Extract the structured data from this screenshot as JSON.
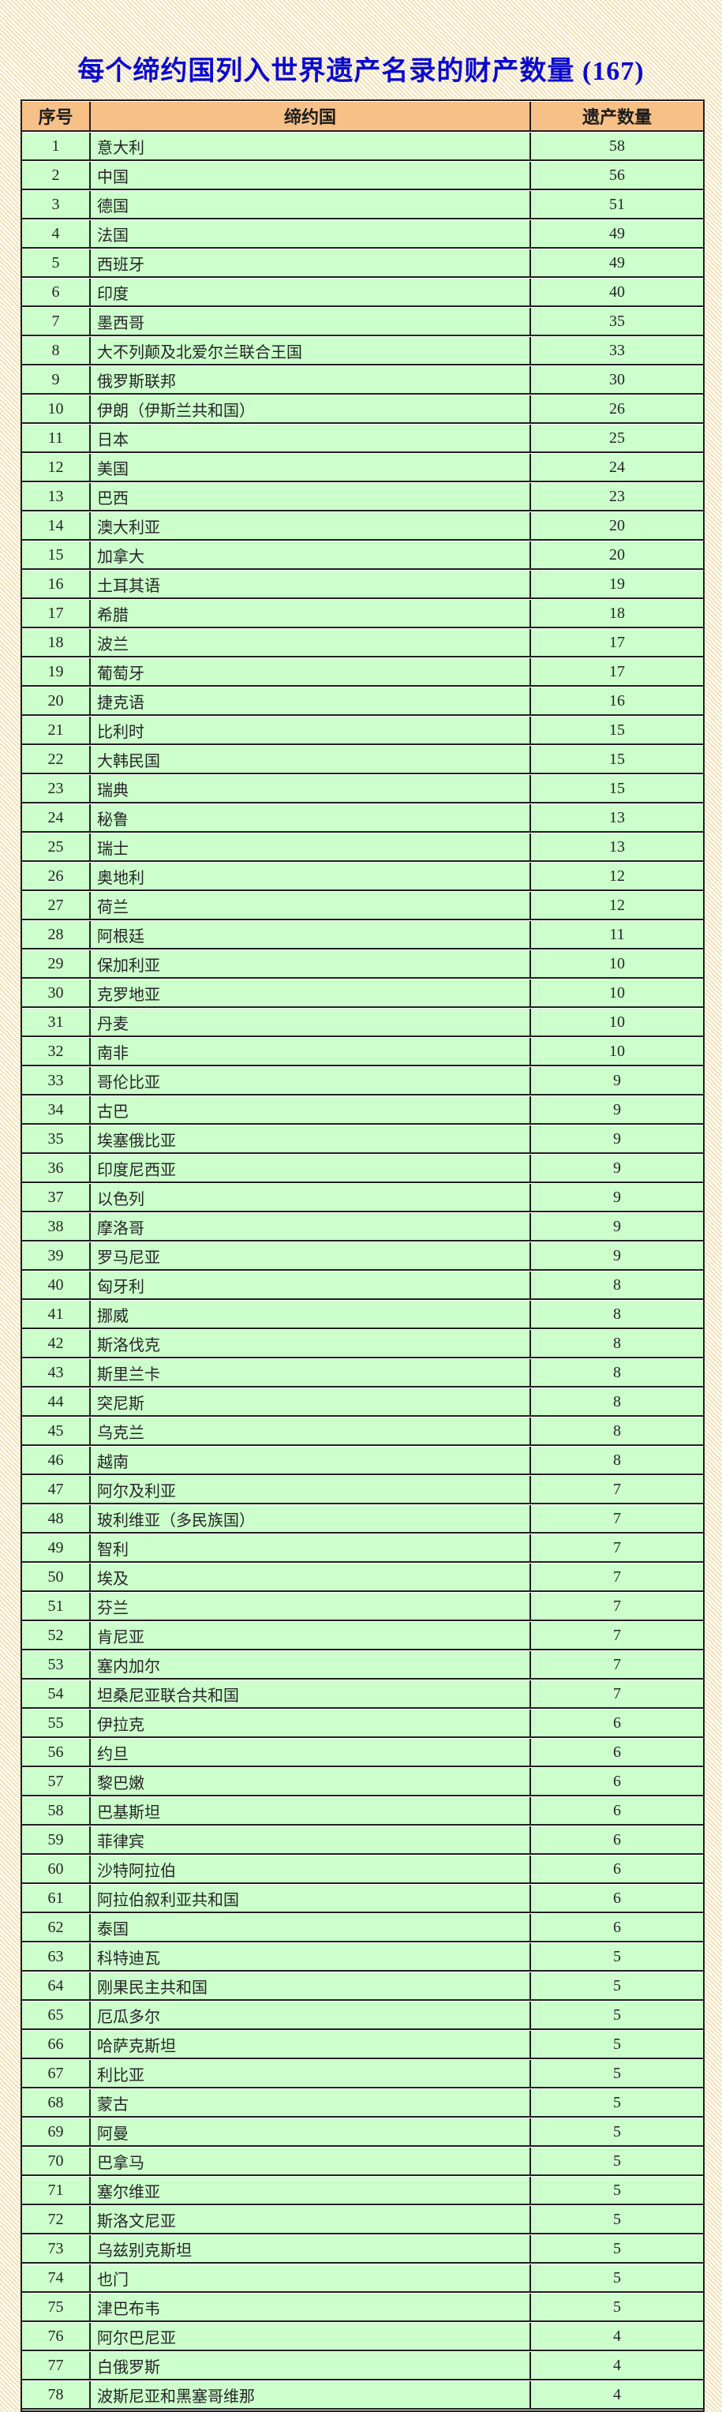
{
  "title": "每个缔约国列入世界遗产名录的财产数量 (167)",
  "table": {
    "headers": [
      "序号",
      "缔约国",
      "遗产数量"
    ],
    "rows": [
      [
        "1",
        "意大利",
        "58"
      ],
      [
        "2",
        "中国",
        "56"
      ],
      [
        "3",
        "德国",
        "51"
      ],
      [
        "4",
        "法国",
        "49"
      ],
      [
        "5",
        "西班牙",
        "49"
      ],
      [
        "6",
        "印度",
        "40"
      ],
      [
        "7",
        "墨西哥",
        "35"
      ],
      [
        "8",
        "大不列颠及北爱尔兰联合王国",
        "33"
      ],
      [
        "9",
        "俄罗斯联邦",
        "30"
      ],
      [
        "10",
        "伊朗（伊斯兰共和国）",
        "26"
      ],
      [
        "11",
        "日本",
        "25"
      ],
      [
        "12",
        "美国",
        "24"
      ],
      [
        "13",
        "巴西",
        "23"
      ],
      [
        "14",
        "澳大利亚",
        "20"
      ],
      [
        "15",
        "加拿大",
        "20"
      ],
      [
        "16",
        "土耳其语",
        "19"
      ],
      [
        "17",
        "希腊",
        "18"
      ],
      [
        "18",
        "波兰",
        "17"
      ],
      [
        "19",
        "葡萄牙",
        "17"
      ],
      [
        "20",
        "捷克语",
        "16"
      ],
      [
        "21",
        "比利时",
        "15"
      ],
      [
        "22",
        "大韩民国",
        "15"
      ],
      [
        "23",
        "瑞典",
        "15"
      ],
      [
        "24",
        "秘鲁",
        "13"
      ],
      [
        "25",
        "瑞士",
        "13"
      ],
      [
        "26",
        "奥地利",
        "12"
      ],
      [
        "27",
        "荷兰",
        "12"
      ],
      [
        "28",
        "阿根廷",
        "11"
      ],
      [
        "29",
        "保加利亚",
        "10"
      ],
      [
        "30",
        "克罗地亚",
        "10"
      ],
      [
        "31",
        "丹麦",
        "10"
      ],
      [
        "32",
        "南非",
        "10"
      ],
      [
        "33",
        "哥伦比亚",
        "9"
      ],
      [
        "34",
        "古巴",
        "9"
      ],
      [
        "35",
        "埃塞俄比亚",
        "9"
      ],
      [
        "36",
        "印度尼西亚",
        "9"
      ],
      [
        "37",
        "以色列",
        "9"
      ],
      [
        "38",
        "摩洛哥",
        "9"
      ],
      [
        "39",
        "罗马尼亚",
        "9"
      ],
      [
        "40",
        "匈牙利",
        "8"
      ],
      [
        "41",
        "挪威",
        "8"
      ],
      [
        "42",
        "斯洛伐克",
        "8"
      ],
      [
        "43",
        "斯里兰卡",
        "8"
      ],
      [
        "44",
        "突尼斯",
        "8"
      ],
      [
        "45",
        "乌克兰",
        "8"
      ],
      [
        "46",
        "越南",
        "8"
      ],
      [
        "47",
        "阿尔及利亚",
        "7"
      ],
      [
        "48",
        "玻利维亚（多民族国）",
        "7"
      ],
      [
        "49",
        "智利",
        "7"
      ],
      [
        "50",
        "埃及",
        "7"
      ],
      [
        "51",
        "芬兰",
        "7"
      ],
      [
        "52",
        "肯尼亚",
        "7"
      ],
      [
        "53",
        "塞内加尔",
        "7"
      ],
      [
        "54",
        "坦桑尼亚联合共和国",
        "7"
      ],
      [
        "55",
        "伊拉克",
        "6"
      ],
      [
        "56",
        "约旦",
        "6"
      ],
      [
        "57",
        "黎巴嫩",
        "6"
      ],
      [
        "58",
        "巴基斯坦",
        "6"
      ],
      [
        "59",
        "菲律宾",
        "6"
      ],
      [
        "60",
        "沙特阿拉伯",
        "6"
      ],
      [
        "61",
        "阿拉伯叙利亚共和国",
        "6"
      ],
      [
        "62",
        "泰国",
        "6"
      ],
      [
        "63",
        "科特迪瓦",
        "5"
      ],
      [
        "64",
        "刚果民主共和国",
        "5"
      ],
      [
        "65",
        "厄瓜多尔",
        "5"
      ],
      [
        "66",
        "哈萨克斯坦",
        "5"
      ],
      [
        "67",
        "利比亚",
        "5"
      ],
      [
        "68",
        "蒙古",
        "5"
      ],
      [
        "69",
        "阿曼",
        "5"
      ],
      [
        "70",
        "巴拿马",
        "5"
      ],
      [
        "71",
        "塞尔维亚",
        "5"
      ],
      [
        "72",
        "斯洛文尼亚",
        "5"
      ],
      [
        "73",
        "乌兹别克斯坦",
        "5"
      ],
      [
        "74",
        "也门",
        "5"
      ],
      [
        "75",
        "津巴布韦",
        "5"
      ],
      [
        "76",
        "阿尔巴尼亚",
        "4"
      ],
      [
        "77",
        "白俄罗斯",
        "4"
      ],
      [
        "78",
        "波斯尼亚和黑塞哥维那",
        "4"
      ]
    ]
  },
  "colors": {
    "title_blue": "#0a0ace",
    "header_bg": "#f6c086",
    "row_bg": "#ccffcc",
    "border": "#1f1f1f",
    "page_hatch_tan": "#f5e1b4",
    "page_hatch_white": "#ffffff"
  }
}
